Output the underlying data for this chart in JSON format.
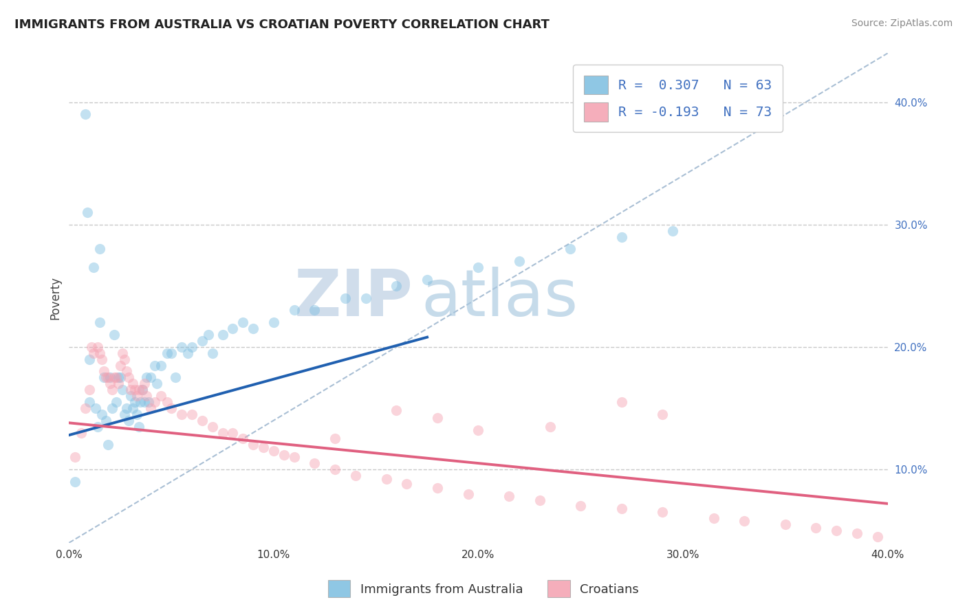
{
  "title": "IMMIGRANTS FROM AUSTRALIA VS CROATIAN POVERTY CORRELATION CHART",
  "source": "Source: ZipAtlas.com",
  "ylabel": "Poverty",
  "xlim": [
    0.0,
    0.4
  ],
  "ylim": [
    0.04,
    0.44
  ],
  "grid_color": "#c8c8c8",
  "background_color": "#ffffff",
  "blue_color": "#7bbde0",
  "pink_color": "#f4a0b0",
  "blue_line_color": "#2060b0",
  "pink_line_color": "#e06080",
  "watermark_zip": "ZIP",
  "watermark_atlas": "atlas",
  "legend1_label": "Immigrants from Australia",
  "legend2_label": "Croatians",
  "blue_scatter_x": [
    0.003,
    0.008,
    0.009,
    0.01,
    0.01,
    0.012,
    0.013,
    0.014,
    0.015,
    0.015,
    0.016,
    0.017,
    0.018,
    0.019,
    0.02,
    0.021,
    0.022,
    0.023,
    0.024,
    0.025,
    0.026,
    0.027,
    0.028,
    0.029,
    0.03,
    0.031,
    0.032,
    0.033,
    0.034,
    0.035,
    0.036,
    0.037,
    0.038,
    0.039,
    0.04,
    0.042,
    0.043,
    0.045,
    0.048,
    0.05,
    0.052,
    0.055,
    0.058,
    0.06,
    0.065,
    0.068,
    0.07,
    0.075,
    0.08,
    0.085,
    0.09,
    0.1,
    0.11,
    0.12,
    0.135,
    0.145,
    0.16,
    0.175,
    0.2,
    0.22,
    0.245,
    0.27,
    0.295
  ],
  "blue_scatter_y": [
    0.09,
    0.39,
    0.31,
    0.19,
    0.155,
    0.265,
    0.15,
    0.135,
    0.28,
    0.22,
    0.145,
    0.175,
    0.14,
    0.12,
    0.175,
    0.15,
    0.21,
    0.155,
    0.175,
    0.175,
    0.165,
    0.145,
    0.15,
    0.14,
    0.16,
    0.15,
    0.155,
    0.145,
    0.135,
    0.155,
    0.165,
    0.155,
    0.175,
    0.155,
    0.175,
    0.185,
    0.17,
    0.185,
    0.195,
    0.195,
    0.175,
    0.2,
    0.195,
    0.2,
    0.205,
    0.21,
    0.195,
    0.21,
    0.215,
    0.22,
    0.215,
    0.22,
    0.23,
    0.23,
    0.24,
    0.24,
    0.25,
    0.255,
    0.265,
    0.27,
    0.28,
    0.29,
    0.295
  ],
  "pink_scatter_x": [
    0.003,
    0.006,
    0.008,
    0.01,
    0.011,
    0.012,
    0.014,
    0.015,
    0.016,
    0.017,
    0.018,
    0.019,
    0.02,
    0.021,
    0.022,
    0.023,
    0.024,
    0.025,
    0.026,
    0.027,
    0.028,
    0.029,
    0.03,
    0.031,
    0.032,
    0.033,
    0.034,
    0.036,
    0.037,
    0.038,
    0.04,
    0.042,
    0.045,
    0.048,
    0.05,
    0.055,
    0.06,
    0.065,
    0.07,
    0.075,
    0.08,
    0.085,
    0.09,
    0.095,
    0.1,
    0.105,
    0.11,
    0.12,
    0.13,
    0.14,
    0.155,
    0.165,
    0.18,
    0.195,
    0.215,
    0.23,
    0.25,
    0.27,
    0.29,
    0.315,
    0.33,
    0.35,
    0.365,
    0.375,
    0.385,
    0.395,
    0.27,
    0.29,
    0.16,
    0.18,
    0.2,
    0.235,
    0.13
  ],
  "pink_scatter_y": [
    0.11,
    0.13,
    0.15,
    0.165,
    0.2,
    0.195,
    0.2,
    0.195,
    0.19,
    0.18,
    0.175,
    0.175,
    0.17,
    0.165,
    0.175,
    0.175,
    0.17,
    0.185,
    0.195,
    0.19,
    0.18,
    0.175,
    0.165,
    0.17,
    0.165,
    0.16,
    0.165,
    0.165,
    0.17,
    0.16,
    0.15,
    0.155,
    0.16,
    0.155,
    0.15,
    0.145,
    0.145,
    0.14,
    0.135,
    0.13,
    0.13,
    0.125,
    0.12,
    0.118,
    0.115,
    0.112,
    0.11,
    0.105,
    0.1,
    0.095,
    0.092,
    0.088,
    0.085,
    0.08,
    0.078,
    0.075,
    0.07,
    0.068,
    0.065,
    0.06,
    0.058,
    0.055,
    0.052,
    0.05,
    0.048,
    0.045,
    0.155,
    0.145,
    0.148,
    0.142,
    0.132,
    0.135,
    0.125
  ],
  "blue_line_x": [
    0.0,
    0.175
  ],
  "blue_line_y": [
    0.128,
    0.208
  ],
  "pink_line_x": [
    0.0,
    0.4
  ],
  "pink_line_y": [
    0.138,
    0.072
  ],
  "dashed_line_x": [
    0.0,
    0.4
  ],
  "dashed_line_y": [
    0.04,
    0.44
  ],
  "dashed_color": "#a0b8d0",
  "marker_size": 120,
  "alpha": 0.45
}
